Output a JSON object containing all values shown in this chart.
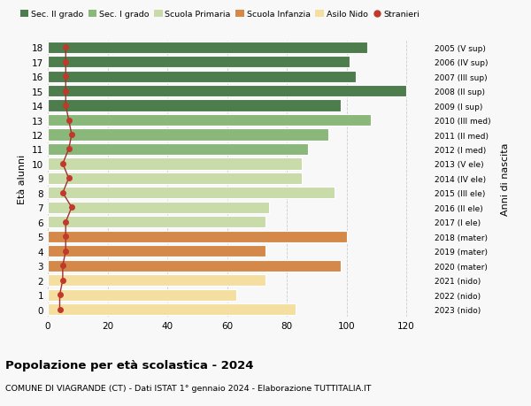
{
  "ages": [
    0,
    1,
    2,
    3,
    4,
    5,
    6,
    7,
    8,
    9,
    10,
    11,
    12,
    13,
    14,
    15,
    16,
    17,
    18
  ],
  "bar_values": [
    83,
    63,
    73,
    98,
    73,
    100,
    73,
    74,
    96,
    85,
    85,
    87,
    94,
    108,
    98,
    120,
    103,
    101,
    107
  ],
  "stranieri": [
    4,
    4,
    5,
    5,
    6,
    6,
    6,
    8,
    5,
    7,
    5,
    7,
    8,
    7,
    6,
    6,
    6,
    6,
    6
  ],
  "right_labels": [
    "2023 (nido)",
    "2022 (nido)",
    "2021 (nido)",
    "2020 (mater)",
    "2019 (mater)",
    "2018 (mater)",
    "2017 (I ele)",
    "2016 (II ele)",
    "2015 (III ele)",
    "2014 (IV ele)",
    "2013 (V ele)",
    "2012 (I med)",
    "2011 (II med)",
    "2010 (III med)",
    "2009 (I sup)",
    "2008 (II sup)",
    "2007 (III sup)",
    "2006 (IV sup)",
    "2005 (V sup)"
  ],
  "bar_colors": [
    "#f5dfa0",
    "#f5dfa0",
    "#f5dfa0",
    "#d4894a",
    "#d4894a",
    "#d4894a",
    "#c8dba8",
    "#c8dba8",
    "#c8dba8",
    "#c8dba8",
    "#c8dba8",
    "#8ab87a",
    "#8ab87a",
    "#8ab87a",
    "#4d7c4d",
    "#4d7c4d",
    "#4d7c4d",
    "#4d7c4d",
    "#4d7c4d"
  ],
  "legend_labels": [
    "Sec. II grado",
    "Sec. I grado",
    "Scuola Primaria",
    "Scuola Infanzia",
    "Asilo Nido",
    "Stranieri"
  ],
  "legend_colors": [
    "#4d7c4d",
    "#8ab87a",
    "#c8dba8",
    "#d4894a",
    "#f5dfa0",
    "#c0392b"
  ],
  "stranieri_color": "#c0392b",
  "stranieri_line_color": "#a03030",
  "ylabel_text": "Età alunni",
  "right_ylabel_text": "Anni di nascita",
  "title": "Popolazione per età scolastica - 2024",
  "subtitle": "COMUNE DI VIAGRANDE (CT) - Dati ISTAT 1° gennaio 2024 - Elaborazione TUTTITALIA.IT",
  "xlim": [
    0,
    128
  ],
  "xticks": [
    0,
    20,
    40,
    60,
    80,
    100,
    120
  ],
  "bg_color": "#f8f8f8"
}
